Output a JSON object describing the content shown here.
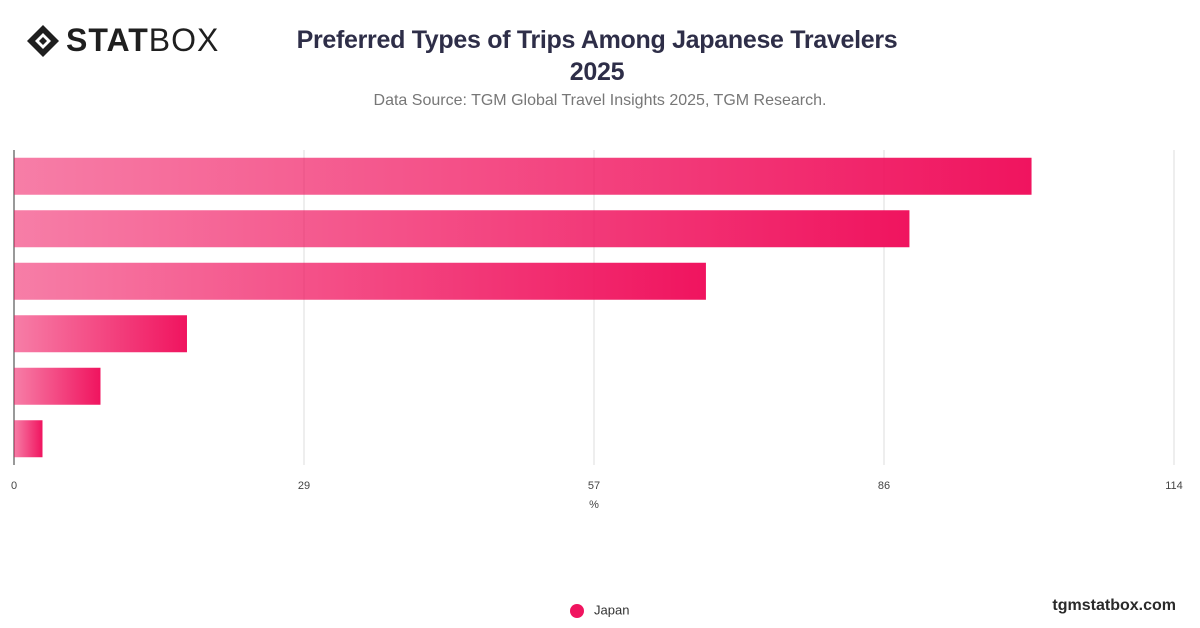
{
  "brand": {
    "logo_bold": "STAT",
    "logo_light": "BOX",
    "site": "tgmstatbox.com"
  },
  "chart_data": {
    "type": "bar",
    "orientation": "horizontal",
    "title": "Preferred Types of Trips Among Japanese Travelers 2025",
    "subtitle": "Data Source: TGM Global Travel Insights 2025, TGM Research.",
    "x_label": "%",
    "categories": [
      null,
      null,
      null,
      null,
      null,
      null
    ],
    "series": [
      {
        "name": "Japan",
        "color": "#f0145f",
        "values": [
          100,
          88,
          68,
          17,
          8.5,
          2.8
        ]
      }
    ],
    "xlim": [
      0,
      114
    ],
    "xticks": [
      0,
      {
        "value": 28.5,
        "label": "29"
      },
      57,
      {
        "value": 85.5,
        "label": "86"
      },
      114
    ],
    "grid": true,
    "legend": "bottom"
  }
}
